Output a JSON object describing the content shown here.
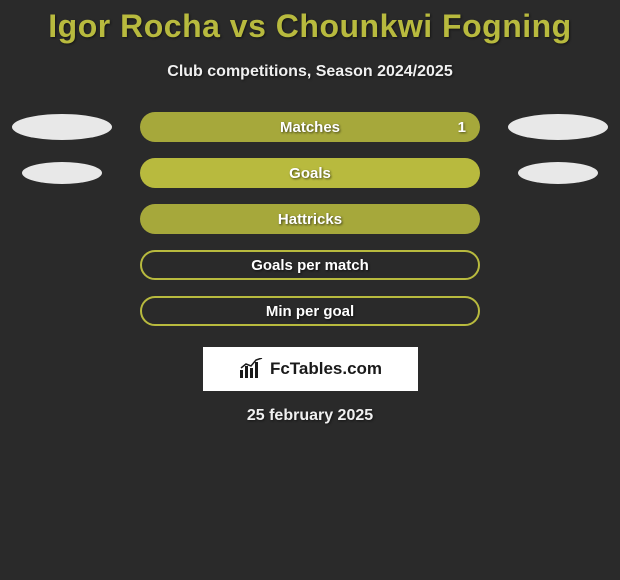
{
  "title": "Igor Rocha vs Chounkwi Fogning",
  "subtitle": "Club competitions, Season 2024/2025",
  "date": "25 february 2025",
  "logo_text": "FcTables.com",
  "colors": {
    "title": "#b8ba3e",
    "bar_fill_matches": "#a6a83b",
    "bar_goals": "#b8ba3e",
    "bar_hattricks": "#a6a83b",
    "bar_gpm": "#b8ba3e",
    "bar_mpg": "#b8ba3e",
    "ellipse": "#e8e8e8",
    "background": "#2a2a2a",
    "subtitle_text": "#f0f0f0"
  },
  "rows": [
    {
      "label": "Matches",
      "style": "filled",
      "fill_color": "#a6a83b",
      "fill_pct": 100,
      "show_left_ellipse": true,
      "show_right_ellipse": true,
      "ellipse_small": false,
      "value_right": "1"
    },
    {
      "label": "Goals",
      "style": "filled",
      "fill_color": "#b8ba3e",
      "fill_pct": 100,
      "show_left_ellipse": true,
      "show_right_ellipse": true,
      "ellipse_small": true,
      "value_right": ""
    },
    {
      "label": "Hattricks",
      "style": "filled",
      "fill_color": "#a6a83b",
      "fill_pct": 100,
      "show_left_ellipse": false,
      "show_right_ellipse": false,
      "ellipse_small": false,
      "value_right": ""
    },
    {
      "label": "Goals per match",
      "style": "outline",
      "fill_color": "#b8ba3e",
      "fill_pct": 0,
      "show_left_ellipse": false,
      "show_right_ellipse": false,
      "ellipse_small": false,
      "value_right": ""
    },
    {
      "label": "Min per goal",
      "style": "outline",
      "fill_color": "#b8ba3e",
      "fill_pct": 0,
      "show_left_ellipse": false,
      "show_right_ellipse": false,
      "ellipse_small": false,
      "value_right": ""
    }
  ]
}
